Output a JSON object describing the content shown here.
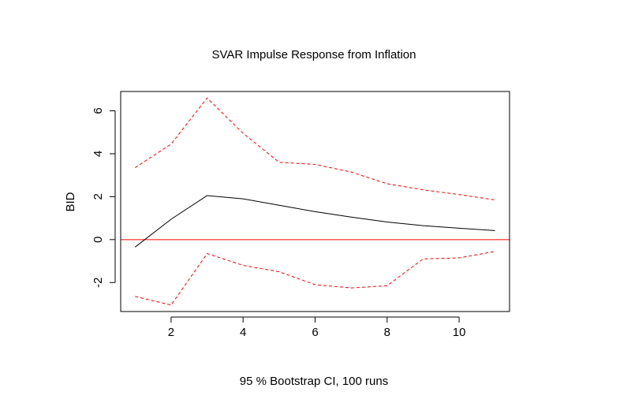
{
  "chart_data": {
    "type": "line",
    "title": "SVAR Impulse Response from Inflation",
    "xlabel": "95 % Bootstrap CI,  100 runs",
    "ylabel": "BID",
    "xlim": [
      0.6,
      11.4
    ],
    "ylim": [
      -3.35,
      6.9
    ],
    "xticks": [
      2,
      4,
      6,
      8,
      10
    ],
    "yticks": [
      -2,
      0,
      2,
      4,
      6
    ],
    "xtick_labels": [
      "2",
      "4",
      "6",
      "8",
      "10"
    ],
    "ytick_labels": [
      "-2",
      "0",
      "2",
      "4",
      "6"
    ],
    "grid": false,
    "x": [
      1,
      2,
      3,
      4,
      5,
      6,
      7,
      8,
      9,
      10,
      11
    ],
    "series": [
      {
        "role": "response",
        "color": "#000000",
        "dash": "solid",
        "values": [
          -0.35,
          0.95,
          2.05,
          1.9,
          1.6,
          1.3,
          1.05,
          0.82,
          0.65,
          0.53,
          0.42
        ]
      },
      {
        "role": "upper",
        "color": "#ff0000",
        "dash": "dashed",
        "values": [
          3.35,
          4.45,
          6.6,
          4.95,
          3.6,
          3.5,
          3.15,
          2.6,
          2.32,
          2.1,
          1.85
        ]
      },
      {
        "role": "lower",
        "color": "#ff0000",
        "dash": "dashed",
        "values": [
          -2.65,
          -3.05,
          -0.65,
          -1.2,
          -1.5,
          -2.1,
          -2.25,
          -2.15,
          -0.9,
          -0.85,
          -0.55
        ]
      }
    ],
    "reference_line": {
      "y": 0,
      "color": "#ff0000"
    }
  }
}
